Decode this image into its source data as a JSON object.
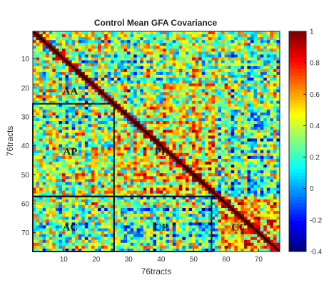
{
  "chart_data": {
    "type": "heatmap",
    "title": "Control Mean GFA Covariance",
    "xlabel": "76tracts",
    "ylabel": "76tracts",
    "n": 76,
    "xlim": [
      0.5,
      76.5
    ],
    "ylim": [
      0.5,
      76.5
    ],
    "x_ticks": [
      10,
      20,
      30,
      40,
      50,
      60,
      70
    ],
    "y_ticks": [
      10,
      20,
      30,
      40,
      50,
      60,
      70
    ],
    "colorbar": {
      "colormap": "jet",
      "range": [
        -0.4,
        1
      ],
      "ticks": [
        -0.4,
        -0.2,
        0,
        0.2,
        0.4,
        0.6,
        0.8,
        1
      ]
    },
    "diagonal_value": 1,
    "regions": [
      {
        "label": "AA",
        "label_at": [
          12,
          21
        ]
      },
      {
        "label": "AP",
        "rows": [
          26,
          57
        ],
        "cols": [
          1,
          25
        ],
        "label_at": [
          12,
          42
        ]
      },
      {
        "label": "PP",
        "label_at": [
          40,
          42
        ]
      },
      {
        "label": "AC",
        "rows": [
          58,
          76
        ],
        "cols": [
          1,
          25
        ],
        "label_at": [
          12,
          68
        ]
      },
      {
        "label": "CP",
        "rows": [
          58,
          76
        ],
        "cols": [
          26,
          55
        ],
        "label_at": [
          40,
          68
        ]
      },
      {
        "label": "CC",
        "label_at": [
          64,
          68
        ]
      }
    ],
    "approximate_block_means": {
      "AA": 0.35,
      "AP": 0.3,
      "PP": 0.42,
      "AC": 0.25,
      "CP": 0.22,
      "CC": 0.55
    }
  }
}
